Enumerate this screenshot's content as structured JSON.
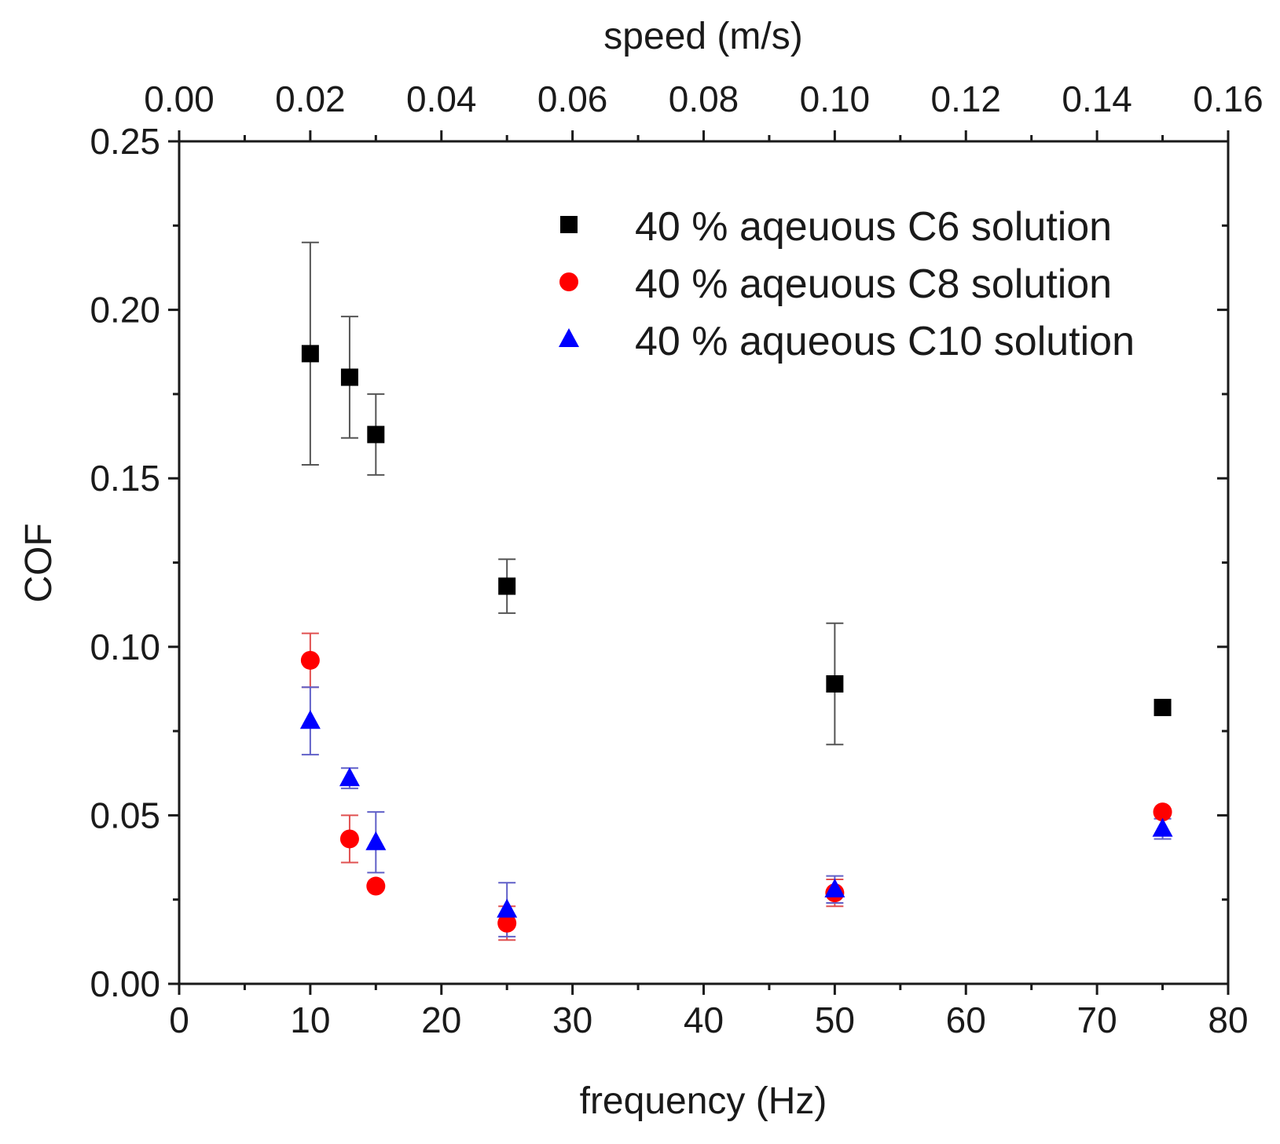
{
  "chart_data": {
    "type": "scatter",
    "title": "",
    "xlabel": "frequency (Hz)",
    "ylabel": "COF",
    "x2label": "speed (m/s)",
    "xlim": [
      0,
      80
    ],
    "ylim": [
      0,
      0.25
    ],
    "x2lim": [
      0,
      0.16
    ],
    "xticks": [
      "0",
      "10",
      "20",
      "30",
      "40",
      "50",
      "60",
      "70",
      "80"
    ],
    "yticks": [
      "0.00",
      "0.05",
      "0.10",
      "0.15",
      "0.20",
      "0.25"
    ],
    "x2ticks": [
      "0.00",
      "0.02",
      "0.04",
      "0.06",
      "0.08",
      "0.10",
      "0.12",
      "0.14",
      "0.16"
    ],
    "grid": false,
    "legend_position": "top-right",
    "series": [
      {
        "name": "40 % aqeuous C6 solution",
        "marker": "square",
        "color": "#000000",
        "errcolor": "#555555",
        "x": [
          10,
          13,
          15,
          25,
          50,
          75
        ],
        "y": [
          0.187,
          0.18,
          0.163,
          0.118,
          0.089,
          0.082
        ],
        "err": [
          0.033,
          0.018,
          0.012,
          0.008,
          0.018,
          0.0
        ]
      },
      {
        "name": "40 % aqeuous C8 solution",
        "marker": "circle",
        "color": "#ff0000",
        "errcolor": "#e05050",
        "x": [
          10,
          13,
          15,
          25,
          50,
          75
        ],
        "y": [
          0.096,
          0.043,
          0.029,
          0.018,
          0.027,
          0.051
        ],
        "err": [
          0.008,
          0.007,
          0.0,
          0.005,
          0.004,
          0.0
        ]
      },
      {
        "name": "40 % aqueous C10 solution",
        "marker": "triangle",
        "color": "#0000ff",
        "errcolor": "#6060c8",
        "x": [
          10,
          13,
          15,
          25,
          50,
          75
        ],
        "y": [
          0.078,
          0.061,
          0.042,
          0.022,
          0.028,
          0.046
        ],
        "err": [
          0.01,
          0.003,
          0.009,
          0.008,
          0.004,
          0.003
        ]
      }
    ]
  }
}
